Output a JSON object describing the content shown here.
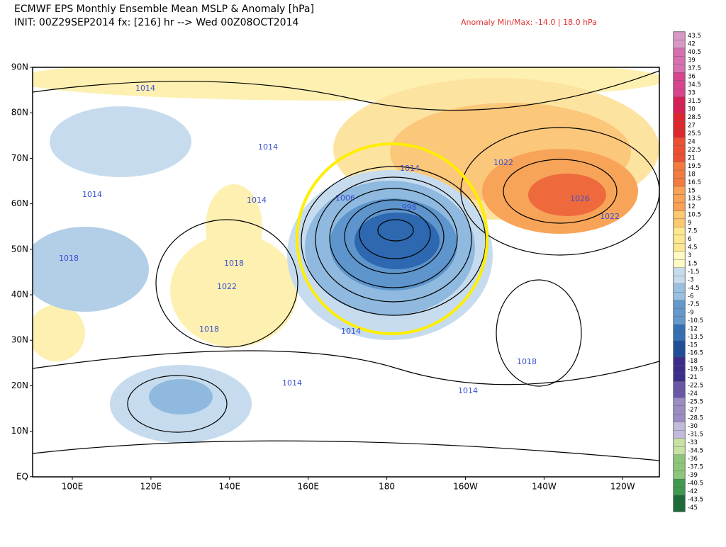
{
  "header": {
    "title": "ECMWF EPS Monthly Ensemble Mean MSLP & Anomaly [hPa]",
    "init": "INIT: 00Z29SEP2014 fx: [216] hr --> Wed 00Z08OCT2014",
    "anomaly": "Anomaly Min/Max: -14.0 | 18.0 hPa"
  },
  "map": {
    "lat_labels": [
      "90N",
      "80N",
      "70N",
      "60N",
      "50N",
      "40N",
      "30N",
      "20N",
      "10N",
      "EQ"
    ],
    "lon_labels": [
      "100E",
      "120E",
      "140E",
      "160E",
      "180",
      "160W",
      "140W",
      "120W"
    ],
    "contour_labels": [
      "1014",
      "1014",
      "1014",
      "1022",
      "1014",
      "1014",
      "1006",
      "998",
      "1026",
      "1022",
      "1018",
      "1018",
      "1022",
      "1014",
      "1018",
      "1018",
      "1014",
      "1014"
    ]
  },
  "colorbar": {
    "labels": [
      "43.5",
      "42",
      "40.5",
      "39",
      "37.5",
      "36",
      "34.5",
      "33",
      "31.5",
      "30",
      "28.5",
      "27",
      "25.5",
      "24",
      "22.5",
      "21",
      "19.5",
      "18",
      "16.5",
      "15",
      "13.5",
      "12",
      "10.5",
      "9",
      "7.5",
      "6",
      "4.5",
      "3",
      "1.5",
      "-1.5",
      "-3",
      "-4.5",
      "-6",
      "-7.5",
      "-9",
      "-10.5",
      "-12",
      "-13.5",
      "-15",
      "-16.5",
      "-18",
      "-19.5",
      "-21",
      "-22.5",
      "-24",
      "-25.5",
      "-27",
      "-28.5",
      "-30",
      "-31.5",
      "-33",
      "-34.5",
      "-36",
      "-37.5",
      "-39",
      "-40.5",
      "-42",
      "-43.5",
      "-45"
    ]
  }
}
